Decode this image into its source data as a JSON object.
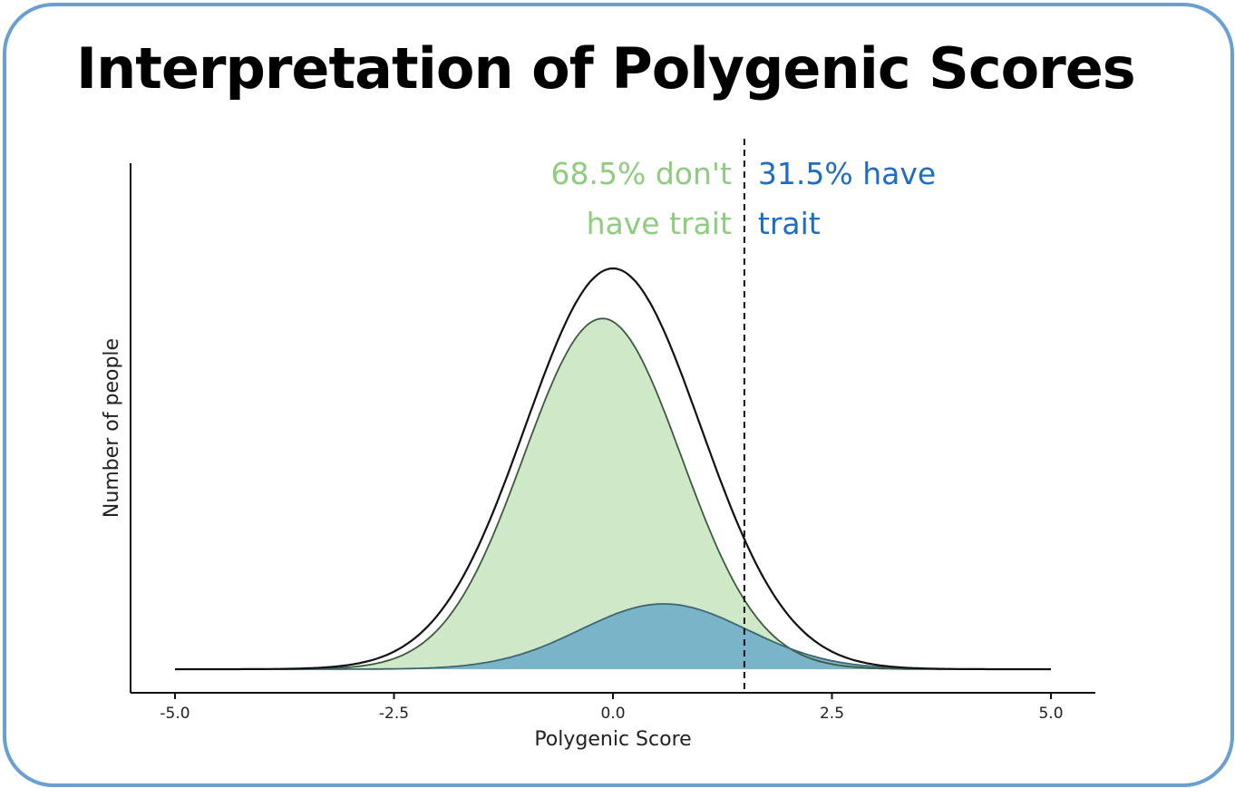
{
  "slide": {
    "title": "Interpretation of Polygenic Scores",
    "frame_color": "#6a9fd4"
  },
  "chart_data": {
    "type": "area",
    "title": "",
    "xlabel": "Polygenic Score",
    "ylabel": "Number of people",
    "xlim": [
      -5.0,
      5.0
    ],
    "xticks": [
      -5.0,
      -2.5,
      0.0,
      2.5,
      5.0
    ],
    "xtick_labels": [
      "-5.0",
      "-2.5",
      "0.0",
      "2.5",
      "5.0"
    ],
    "y_ticks_shown": false,
    "grid": false,
    "threshold": 1.5,
    "series": [
      {
        "role": "total",
        "mean": 0.0,
        "sd": 1.0,
        "peak": 1.0,
        "fill": "none",
        "stroke": "#111111"
      },
      {
        "role": "no-trait",
        "mean": -0.12,
        "sd": 0.9,
        "peak": 0.875,
        "fill": "#cfe8c8",
        "stroke": "#3d5a3d"
      },
      {
        "role": "trait",
        "mean": 0.58,
        "sd": 0.95,
        "peak": 0.163,
        "fill": "#7ab4c8",
        "stroke": "#3f6672"
      }
    ],
    "annotations": [
      {
        "id": "left_line1",
        "text": "68.5% don't",
        "color": "#8fcd7e"
      },
      {
        "id": "left_line2",
        "text": "have trait",
        "color": "#8fcd7e"
      },
      {
        "id": "right_line1",
        "text": "31.5% have",
        "color": "#1f6dc2"
      },
      {
        "id": "right_line2",
        "text": "trait",
        "color": "#1f6dc2"
      }
    ]
  }
}
